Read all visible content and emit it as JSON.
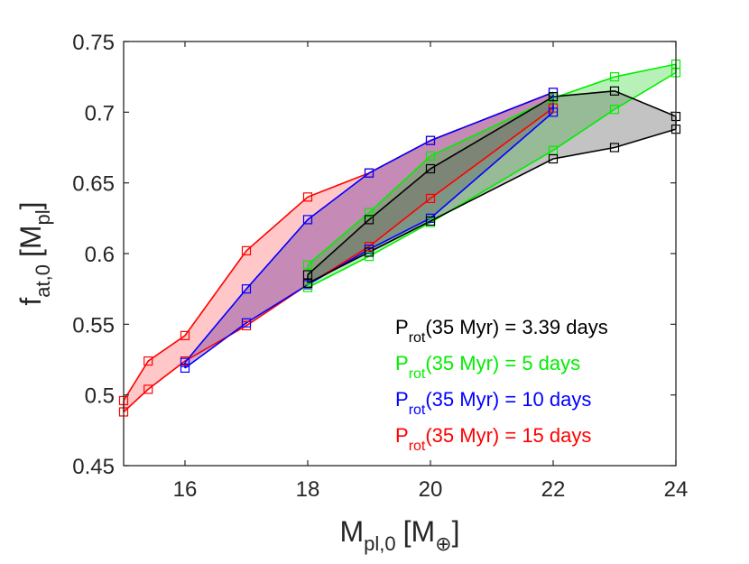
{
  "chart_data": {
    "type": "area",
    "title": "",
    "xlabel": {
      "main": "M",
      "sub": "pl,0",
      "unit_open": "[M",
      "unit_sub": "⊕",
      "unit_close": "]"
    },
    "ylabel": {
      "main": "f",
      "sub": "at,0",
      "unit_open": "[M",
      "unit_sub": "pl",
      "unit_close": "]"
    },
    "xlim": [
      15,
      24
    ],
    "ylim": [
      0.45,
      0.75
    ],
    "xticks": [
      16,
      18,
      20,
      22,
      24
    ],
    "yticks": [
      0.45,
      0.5,
      0.55,
      0.6,
      0.65,
      0.7,
      0.75
    ],
    "ytick_labels": [
      "0.45",
      "0.5",
      "0.55",
      "0.6",
      "0.65",
      "0.7",
      "0.75"
    ],
    "legend_position": "bottom-right",
    "series": [
      {
        "name": "15 days",
        "legend": {
          "P": "P",
          "sub": "rot",
          "rest": "(35 Myr) = 15 days"
        },
        "color": "#ff0000",
        "fill": "#ff0000",
        "fill_opacity": 0.22,
        "upper": [
          [
            15,
            0.496
          ],
          [
            15.4,
            0.524
          ],
          [
            16,
            0.542
          ],
          [
            17,
            0.602
          ],
          [
            18,
            0.64
          ],
          [
            19,
            0.657
          ],
          [
            20,
            0.68
          ],
          [
            22,
            0.714
          ]
        ],
        "lower": [
          [
            15,
            0.488
          ],
          [
            15.4,
            0.504
          ],
          [
            16,
            0.524
          ],
          [
            17,
            0.549
          ],
          [
            18,
            0.578
          ],
          [
            19,
            0.605
          ],
          [
            20,
            0.639
          ],
          [
            22,
            0.703
          ]
        ]
      },
      {
        "name": "10 days",
        "legend": {
          "P": "P",
          "sub": "rot",
          "rest": "(35 Myr) = 10 days"
        },
        "color": "#0000ff",
        "fill": "#7030a0",
        "fill_opacity": 0.4,
        "upper": [
          [
            16,
            0.523
          ],
          [
            17,
            0.575
          ],
          [
            18,
            0.624
          ],
          [
            19,
            0.657
          ],
          [
            20,
            0.68
          ],
          [
            22,
            0.714
          ]
        ],
        "lower": [
          [
            16,
            0.519
          ],
          [
            17,
            0.551
          ],
          [
            18,
            0.578
          ],
          [
            19,
            0.603
          ],
          [
            20,
            0.625
          ],
          [
            22,
            0.7
          ]
        ]
      },
      {
        "name": "5 days",
        "legend": {
          "P": "P",
          "sub": "rot",
          "rest": "(35 Myr) = 5 days"
        },
        "color": "#00ee00",
        "fill": "#00cc00",
        "fill_opacity": 0.28,
        "upper": [
          [
            18,
            0.592
          ],
          [
            19,
            0.629
          ],
          [
            20,
            0.669
          ],
          [
            22,
            0.71
          ],
          [
            23,
            0.725
          ],
          [
            24,
            0.734
          ]
        ],
        "lower": [
          [
            18,
            0.576
          ],
          [
            19,
            0.598
          ],
          [
            20,
            0.622
          ],
          [
            22,
            0.673
          ],
          [
            23,
            0.702
          ],
          [
            24,
            0.728
          ]
        ]
      },
      {
        "name": "3.39 days",
        "legend": {
          "P": "P",
          "sub": "rot",
          "rest": "(35 Myr) = 3.39 days"
        },
        "color": "#000000",
        "fill": "#606060",
        "fill_opacity": 0.38,
        "upper": [
          [
            18,
            0.585
          ],
          [
            19,
            0.624
          ],
          [
            20,
            0.66
          ],
          [
            22,
            0.711
          ],
          [
            23,
            0.715
          ],
          [
            24,
            0.697
          ]
        ],
        "lower": [
          [
            18,
            0.579
          ],
          [
            19,
            0.601
          ],
          [
            20,
            0.623
          ],
          [
            22,
            0.667
          ],
          [
            23,
            0.675
          ],
          [
            24,
            0.688
          ]
        ]
      }
    ],
    "legend_order": [
      "3.39 days",
      "5 days",
      "10 days",
      "15 days"
    ]
  }
}
